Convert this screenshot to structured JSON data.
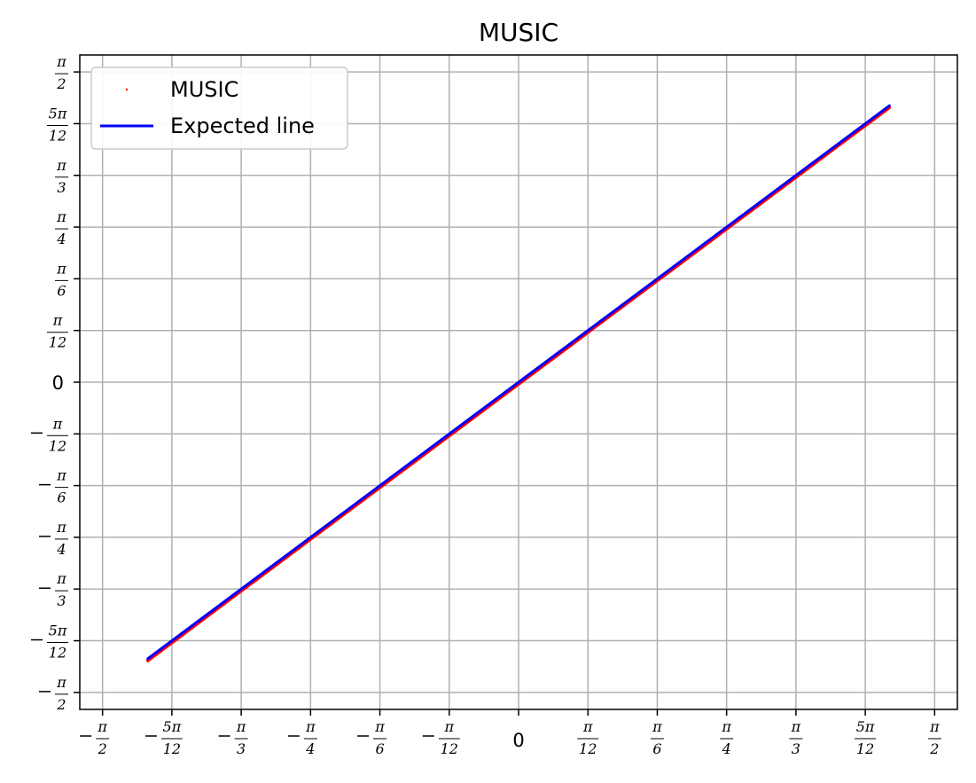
{
  "chart_data": {
    "type": "line",
    "title": "MUSIC",
    "xlabel": "",
    "ylabel": "",
    "xlim": [
      -1.6567,
      1.6567
    ],
    "ylim": [
      -1.6567,
      1.6567
    ],
    "grid": true,
    "legend": {
      "placement": "top-left",
      "entries": [
        "MUSIC",
        "Expected line"
      ]
    },
    "x_ticks": [
      {
        "value": -1.5708,
        "num": "π",
        "den": "2",
        "neg": true
      },
      {
        "value": -1.309,
        "num": "5π",
        "den": "12",
        "neg": true
      },
      {
        "value": -1.0472,
        "num": "π",
        "den": "3",
        "neg": true
      },
      {
        "value": -0.7854,
        "num": "π",
        "den": "4",
        "neg": true
      },
      {
        "value": -0.5236,
        "num": "π",
        "den": "6",
        "neg": true
      },
      {
        "value": -0.2618,
        "num": "π",
        "den": "12",
        "neg": true
      },
      {
        "value": 0,
        "zero": "0"
      },
      {
        "value": 0.2618,
        "num": "π",
        "den": "12",
        "neg": false
      },
      {
        "value": 0.5236,
        "num": "π",
        "den": "6",
        "neg": false
      },
      {
        "value": 0.7854,
        "num": "π",
        "den": "4",
        "neg": false
      },
      {
        "value": 1.0472,
        "num": "π",
        "den": "3",
        "neg": false
      },
      {
        "value": 1.309,
        "num": "5π",
        "den": "12",
        "neg": false
      },
      {
        "value": 1.5708,
        "num": "π",
        "den": "2",
        "neg": false
      }
    ],
    "y_ticks": [
      {
        "value": -1.5708,
        "num": "π",
        "den": "2",
        "neg": true
      },
      {
        "value": -1.309,
        "num": "5π",
        "den": "12",
        "neg": true
      },
      {
        "value": -1.0472,
        "num": "π",
        "den": "3",
        "neg": true
      },
      {
        "value": -0.7854,
        "num": "π",
        "den": "4",
        "neg": true
      },
      {
        "value": -0.5236,
        "num": "π",
        "den": "6",
        "neg": true
      },
      {
        "value": -0.2618,
        "num": "π",
        "den": "12",
        "neg": true
      },
      {
        "value": 0,
        "zero": "0"
      },
      {
        "value": 0.2618,
        "num": "π",
        "den": "12",
        "neg": false
      },
      {
        "value": 0.5236,
        "num": "π",
        "den": "6",
        "neg": false
      },
      {
        "value": 0.7854,
        "num": "π",
        "den": "4",
        "neg": false
      },
      {
        "value": 1.0472,
        "num": "π",
        "den": "3",
        "neg": false
      },
      {
        "value": 1.309,
        "num": "5π",
        "den": "12",
        "neg": false
      },
      {
        "value": 1.5708,
        "num": "π",
        "den": "2",
        "neg": false
      }
    ],
    "series": [
      {
        "name": "MUSIC",
        "style": "points",
        "color": "#ff0000",
        "x": [
          -1.4,
          -1.3,
          -1.2,
          -1.1,
          -1.0,
          -0.9,
          -0.8,
          -0.7,
          -0.6,
          -0.5,
          -0.4,
          -0.3,
          -0.2,
          -0.1,
          0.0,
          0.1,
          0.2,
          0.3,
          0.4,
          0.5,
          0.6,
          0.7,
          0.8,
          0.9,
          1.0,
          1.1,
          1.2,
          1.3,
          1.4
        ],
        "y": [
          -1.41,
          -1.31,
          -1.21,
          -1.11,
          -1.01,
          -0.91,
          -0.81,
          -0.71,
          -0.61,
          -0.51,
          -0.41,
          -0.31,
          -0.21,
          -0.11,
          -0.01,
          0.09,
          0.19,
          0.29,
          0.39,
          0.49,
          0.59,
          0.69,
          0.79,
          0.89,
          0.99,
          1.09,
          1.19,
          1.29,
          1.39
        ]
      },
      {
        "name": "Expected line",
        "style": "line",
        "color": "#0000ff",
        "x": [
          -1.4,
          1.4
        ],
        "y": [
          -1.4,
          1.4
        ]
      }
    ]
  }
}
